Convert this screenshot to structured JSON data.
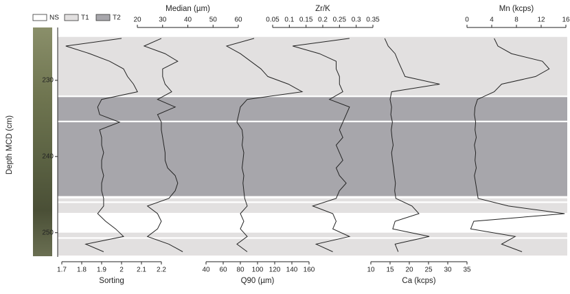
{
  "chart_data": {
    "type": "line",
    "ylabel": "Depth MCD (cm)",
    "ylim": [
      224,
      253
    ],
    "yticks": [
      230,
      240,
      250
    ],
    "legend": [
      {
        "name": "NS",
        "color": "#ffffff"
      },
      {
        "name": "T1",
        "color": "#e2e0e0"
      },
      {
        "name": "T2",
        "color": "#a7a6ab"
      }
    ],
    "bands": [
      {
        "unit": "T1",
        "from": 224.3,
        "to": 232.0
      },
      {
        "unit": "T2",
        "from": 232.2,
        "to": 235.3
      },
      {
        "unit": "T2",
        "from": 235.5,
        "to": 245.2
      },
      {
        "unit": "T1",
        "from": 245.5,
        "to": 245.9
      },
      {
        "unit": "T1",
        "from": 246.1,
        "to": 247.4
      },
      {
        "unit": "T1",
        "from": 250.0,
        "to": 250.6
      },
      {
        "unit": "T1",
        "from": 250.8,
        "to": 253.0
      }
    ],
    "depth": [
      224.5,
      225.5,
      226.5,
      227.5,
      228.5,
      229.5,
      230.5,
      231.5,
      232.5,
      233.5,
      234.5,
      235.5,
      236.5,
      237.5,
      238.5,
      239.5,
      240.5,
      241.5,
      242.5,
      243.5,
      244.5,
      245.5,
      246.5,
      247.5,
      248.5,
      249.5,
      250.5,
      251.5,
      252.5
    ],
    "panels": [
      {
        "label": "Sorting",
        "axis": "bottom",
        "xlim": [
          1.7,
          2.2
        ],
        "xticks": [
          1.7,
          1.8,
          1.9,
          2,
          2.1,
          2.2
        ],
        "values": [
          2.0,
          1.72,
          1.84,
          1.94,
          2.01,
          2.03,
          2.06,
          2.08,
          1.9,
          1.88,
          1.89,
          1.99,
          1.89,
          1.9,
          1.9,
          1.91,
          1.9,
          1.9,
          1.91,
          1.9,
          1.9,
          1.91,
          1.91,
          1.88,
          1.92,
          1.97,
          2.01,
          1.82,
          1.91
        ]
      },
      {
        "label": "Median (µm)",
        "axis": "top",
        "xlim": [
          20,
          60
        ],
        "xticks": [
          20,
          30,
          40,
          50,
          60
        ],
        "values": [
          29.5,
          22.7,
          31,
          36,
          30,
          30,
          31,
          33.6,
          28,
          35,
          28,
          29.5,
          29.5,
          30,
          30.5,
          31,
          31,
          32,
          35,
          36,
          35,
          32.5,
          24,
          28,
          29.5,
          28,
          24,
          32.5,
          38
        ]
      },
      {
        "label": "Q90 (µm)",
        "axis": "bottom",
        "xlim": [
          40,
          160
        ],
        "xticks": [
          40,
          60,
          80,
          100,
          120,
          140,
          160
        ],
        "values": [
          96,
          64,
          80,
          92,
          104,
          112,
          136,
          152,
          88,
          80,
          78,
          76,
          82,
          83,
          82,
          84,
          83,
          82,
          84,
          83,
          84,
          85,
          88,
          80,
          84,
          80,
          88,
          76,
          88
        ]
      },
      {
        "label": "Zr/K",
        "axis": "top",
        "xlim": [
          0.05,
          0.35
        ],
        "xticks": [
          0.05,
          0.1,
          0.15,
          0.2,
          0.25,
          0.3,
          0.35
        ],
        "values": [
          0.28,
          0.11,
          0.19,
          0.24,
          0.24,
          0.25,
          0.25,
          0.26,
          0.22,
          0.28,
          0.27,
          0.26,
          0.25,
          0.26,
          0.24,
          0.25,
          0.26,
          0.24,
          0.25,
          0.27,
          0.25,
          0.24,
          0.17,
          0.23,
          0.24,
          0.23,
          0.28,
          0.18,
          0.23
        ]
      },
      {
        "label": "Ca (kcps)",
        "axis": "bottom",
        "xlim": [
          10,
          35
        ],
        "xticks": [
          10,
          15,
          20,
          25,
          30,
          35
        ],
        "values": [
          13.6,
          14.5,
          16.3,
          17.1,
          18,
          18.9,
          27.9,
          15.4,
          15,
          15.4,
          15.2,
          15.6,
          15.3,
          15.5,
          15.8,
          15.4,
          15.6,
          15.9,
          16.1,
          16.4,
          16.2,
          16.5,
          20.7,
          22.5,
          16.3,
          15.7,
          25.2,
          16.3,
          17.1
        ]
      },
      {
        "label": "Mn (kcps)",
        "axis": "top",
        "xlim": [
          0,
          16
        ],
        "xticks": [
          0,
          4,
          8,
          12,
          16
        ],
        "values": [
          4.4,
          5,
          7.2,
          12.2,
          13.3,
          11.1,
          5.6,
          4.4,
          1.7,
          1.3,
          1.2,
          1.4,
          1.3,
          1.5,
          1.2,
          1.4,
          1.3,
          1.5,
          1.2,
          1.4,
          1.6,
          1.8,
          6.7,
          15.8,
          1.1,
          0.6,
          7.8,
          5.6,
          8.9
        ]
      }
    ]
  }
}
